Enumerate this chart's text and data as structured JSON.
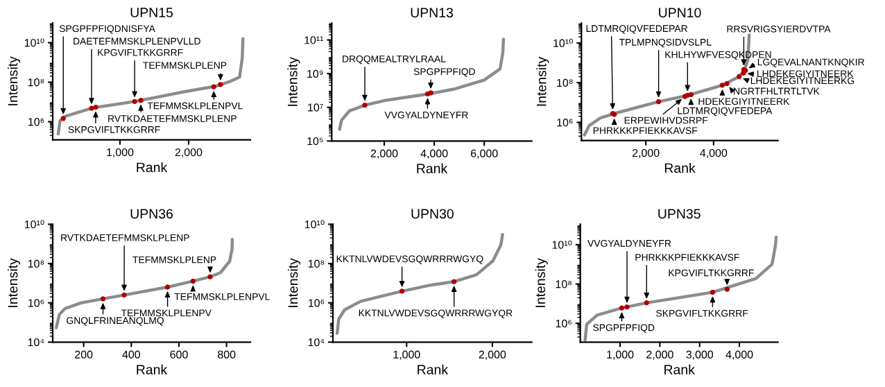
{
  "chart_data": [
    {
      "type": "scatter",
      "title": "UPN15",
      "xlabel": "Rank",
      "ylabel": "Intensity",
      "log": "y",
      "xlim": [
        20,
        2900
      ],
      "ylim": [
        120000.0,
        100000000000.0
      ],
      "xticks": [
        {
          "value": 1000,
          "label": "1,000"
        },
        {
          "value": 2000,
          "label": "2,000"
        }
      ],
      "yticks": [
        {
          "value": 1000000.0,
          "label": "10⁶"
        },
        {
          "value": 100000000.0,
          "label": "10⁸"
        },
        {
          "value": 10000000000.0,
          "label": "10¹⁰"
        }
      ],
      "series": [
        {
          "type": "line",
          "color": "#8c8c8c",
          "x": [
            100,
            127,
            204,
            602,
            1214,
            1300,
            1940,
            2400,
            2608,
            2742,
            2782,
            2792
          ],
          "values": [
            240000.0,
            1100000.0,
            1900000.0,
            5000000.0,
            10500000.0,
            12000000.0,
            33000000.0,
            63000000.0,
            110000000.0,
            180000000.0,
            1700000000.0,
            16000000000.0
          ]
        },
        {
          "marker": "circle",
          "color": "#b00000",
          "x": [
            174,
            586,
            646,
            1214,
            1304,
            2367,
            2464
          ],
          "values": [
            1450000.0,
            4800000.0,
            5400000.0,
            10500000.0,
            12000000.0,
            58000000.0,
            76000000.0
          ]
        }
      ],
      "annotations": [
        {
          "text": "SPGPFPFIQDNISFYA",
          "x": 174,
          "y": 1450000.0
        },
        {
          "text": "DAETEFMMSKLPLENPVLLD",
          "x": 586,
          "y": 4800000.0
        },
        {
          "text": "SKPGVIFLTKKGRRF",
          "x": 646,
          "y": 5400000.0
        },
        {
          "text": "KPGVIFLTKKGRRF",
          "x": 1214,
          "y": 10500000.0
        },
        {
          "text": "RVTKDAETEFMMSKLPLENP",
          "x": 1304,
          "y": 12000000.0
        },
        {
          "text": "TEFMMSKLPLENPVL",
          "x": 2367,
          "y": 58000000.0
        },
        {
          "text": "TEFMMSKLPLENP",
          "x": 2464,
          "y": 76000000.0
        }
      ]
    },
    {
      "type": "scatter",
      "title": "UPN13",
      "xlabel": "Rank",
      "ylabel": "Intensity",
      "log": "y",
      "xlim": [
        -100,
        7900
      ],
      "ylim": [
        100000.0,
        1000000000000.0
      ],
      "xticks": [
        {
          "value": 2000,
          "label": "2,000"
        },
        {
          "value": 4000,
          "label": "4,000"
        },
        {
          "value": 6000,
          "label": "6,000"
        }
      ],
      "yticks": [
        {
          "value": 100000.0,
          "label": "10⁵"
        },
        {
          "value": 10000000.0,
          "label": "10⁷"
        },
        {
          "value": 1000000000.0,
          "label": "10⁹"
        },
        {
          "value": 100000000000.0,
          "label": "10¹¹"
        }
      ],
      "series": [
        {
          "type": "line",
          "color": "#8c8c8c",
          "x": [
            214,
            289,
            611,
            1222,
            2000,
            3760,
            4778,
            6000,
            6630,
            6742,
            6769
          ],
          "values": [
            490000.0,
            1700000.0,
            6200000.0,
            13500000.0,
            25000000.0,
            62000000.0,
            120000000.0,
            420000000.0,
            1900000000.0,
            17000000000.0,
            110000000000.0
          ]
        },
        {
          "marker": "circle",
          "color": "#b00000",
          "x": [
            1222,
            3733,
            3861
          ],
          "values": [
            13500000.0,
            62000000.0,
            72000000.0
          ]
        }
      ],
      "annotations": [
        {
          "text": "DRQQMEALTRYLRAAL",
          "x": 1222,
          "y": 13500000.0
        },
        {
          "text": "SPGPFPFIQD",
          "x": 3861,
          "y": 72000000.0
        },
        {
          "text": "VVGYALDYNEYFR",
          "x": 3733,
          "y": 62000000.0
        }
      ]
    },
    {
      "type": "scatter",
      "title": "UPN10",
      "xlabel": "Rank",
      "ylabel": "Intensity",
      "log": "y",
      "xlim": [
        100,
        5900
      ],
      "ylim": [
        120000.0,
        100000000000.0
      ],
      "xticks": [
        {
          "value": 2000,
          "label": "2,000"
        },
        {
          "value": 4000,
          "label": "4,000"
        }
      ],
      "yticks": [
        {
          "value": 1000000.0,
          "label": "10⁶"
        },
        {
          "value": 100000000.0,
          "label": "10⁸"
        },
        {
          "value": 10000000000.0,
          "label": "10¹⁰"
        }
      ],
      "series": [
        {
          "type": "line",
          "color": "#8c8c8c",
          "x": [
            191,
            328,
            670,
            1045,
            2377,
            3250,
            4256,
            4754,
            4904,
            5006,
            5041,
            5050
          ],
          "values": [
            230000.0,
            680000.0,
            1700000.0,
            2700000.0,
            11000000.0,
            23000000.0,
            74000000.0,
            200000000.0,
            410000000.0,
            1300000000.0,
            11000000000.0,
            25000000000.0
          ]
        },
        {
          "marker": "circle",
          "color": "#b00000",
          "x": [
            1025,
            1070,
            2377,
            3156,
            3231,
            3334,
            4256,
            4393,
            4754,
            4880,
            4891,
            4939
          ],
          "values": [
            2750000.0,
            2500000.0,
            11000000.0,
            20000000.0,
            23000000.0,
            25000000.0,
            74000000.0,
            89000000.0,
            200000000.0,
            300000000.0,
            450000000.0,
            410000000.0
          ]
        }
      ],
      "annotations": [
        {
          "text": "LDTMRQIQVFEDEPAR",
          "x": 1025,
          "y": 2750000.0
        },
        {
          "text": "PHRKKKPFIEKKKAVSF",
          "x": 1070,
          "y": 2500000.0
        },
        {
          "text": "TPLMPNQSIDVSLPL",
          "x": 2377,
          "y": 11000000.0
        },
        {
          "text": "ERPEWIHVDSRPF",
          "x": 3156,
          "y": 20000000.0
        },
        {
          "text": "KHLHYWFVESQKDPEN",
          "x": 3231,
          "y": 23000000.0
        },
        {
          "text": "LDTMRQIQVFEDEPA",
          "x": 3334,
          "y": 25000000.0
        },
        {
          "text": "HDEKEGIYITNEERK",
          "x": 4256,
          "y": 74000000.0
        },
        {
          "text": "NGRTFHLTRTLTVK",
          "x": 4393,
          "y": 89000000.0
        },
        {
          "text": "LHDEKEGIYITNEERKG",
          "x": 4754,
          "y": 200000000.0
        },
        {
          "text": "LHDEKEGIYITNEERK",
          "x": 4880,
          "y": 300000000.0
        },
        {
          "text": "RRSVRIGSYIERDVTPA",
          "x": 4891,
          "y": 450000000.0
        },
        {
          "text": "LGQEVALNANTKNQKIR",
          "x": 4939,
          "y": 410000000.0
        }
      ]
    },
    {
      "type": "scatter",
      "title": "UPN36",
      "xlabel": "Rank",
      "ylabel": "Intensity",
      "log": "y",
      "xlim": [
        70,
        900
      ],
      "ylim": [
        10000.0,
        10000000000.0
      ],
      "xticks": [
        200,
        400,
        600,
        800
      ],
      "yticks": [
        {
          "value": 10000.0,
          "label": "10⁴"
        },
        {
          "value": 1000000.0,
          "label": "10⁶"
        },
        {
          "value": 100000000.0,
          "label": "10⁸"
        },
        {
          "value": 10000000000.0,
          "label": "10¹⁰"
        }
      ],
      "series": [
        {
          "type": "line",
          "color": "#8c8c8c",
          "x": [
            85,
            98,
            122,
            190,
            281,
            370,
            552,
            659,
            731,
            774,
            813,
            823,
            824
          ],
          "values": [
            54000.0,
            260000.0,
            510000.0,
            1000000.0,
            1600000.0,
            2500000.0,
            6300000.0,
            12600000.0,
            21000000.0,
            34000000.0,
            130000000.0,
            540000000.0,
            1700000000.0
          ]
        },
        {
          "marker": "circle",
          "color": "#b00000",
          "x": [
            281,
            370,
            552,
            659,
            731
          ],
          "values": [
            1600000.0,
            2500000.0,
            6300000.0,
            12600000.0,
            21000000.0
          ]
        }
      ],
      "annotations": [
        {
          "text": "GNQLFRINEANQLMQ",
          "x": 281,
          "y": 1600000.0
        },
        {
          "text": "RVTKDAETEFMMSKLPLENP",
          "x": 370,
          "y": 2500000.0
        },
        {
          "text": "TEFMMSKLPLENPV",
          "x": 552,
          "y": 6300000.0
        },
        {
          "text": "TEFMMSKLPLENPVL",
          "x": 659,
          "y": 12600000.0
        },
        {
          "text": "TEFMMSKLPLENP",
          "x": 731,
          "y": 21000000.0
        }
      ]
    },
    {
      "type": "scatter",
      "title": "UPN30",
      "xlabel": "Rank",
      "ylabel": "Intensity",
      "log": "y",
      "xlim": [
        140,
        2460
      ],
      "ylim": [
        10000.0,
        10000000000.0
      ],
      "xticks": [
        {
          "value": 1000,
          "label": "1,000"
        },
        {
          "value": 2000,
          "label": "2,000"
        }
      ],
      "yticks": [
        {
          "value": 10000.0,
          "label": "10⁴"
        },
        {
          "value": 1000000.0,
          "label": "10⁶"
        },
        {
          "value": 100000000.0,
          "label": "10⁸"
        },
        {
          "value": 10000000000.0,
          "label": "10¹⁰"
        }
      ],
      "series": [
        {
          "type": "line",
          "color": "#8c8c8c",
          "x": [
            189,
            208,
            276,
            465,
            946,
            1276,
            1553,
            1815,
            2006,
            2100,
            2119
          ],
          "values": [
            28000.0,
            150000.0,
            440000.0,
            1200000.0,
            3900000.0,
            7900000.0,
            12000000.0,
            27000000.0,
            135000000.0,
            890000000.0,
            3000000000.0
          ]
        },
        {
          "marker": "circle",
          "color": "#b00000",
          "x": [
            946,
            1553
          ],
          "values": [
            3900000.0,
            12000000.0
          ]
        }
      ],
      "annotations": [
        {
          "text": "KKTNLVWDEVSGQWRRRWGYQ",
          "x": 946,
          "y": 3900000.0
        },
        {
          "text": "KKTNLVWDEVSGQWRRRWGYQR",
          "x": 1553,
          "y": 12000000.0
        }
      ]
    },
    {
      "type": "scatter",
      "title": "UPN35",
      "xlabel": "Rank",
      "ylabel": "Intensity",
      "log": "y",
      "xlim": [
        0,
        4970
      ],
      "ylim": [
        110000.0,
        110000000000.0
      ],
      "xticks": [
        {
          "value": 1000,
          "label": "1,000"
        },
        {
          "value": 2000,
          "label": "2,000"
        },
        {
          "value": 3000,
          "label": "3,000"
        },
        {
          "value": 4000,
          "label": "4,000"
        }
      ],
      "yticks": [
        {
          "value": 1000000.0,
          "label": "10⁶"
        },
        {
          "value": 100000000.0,
          "label": "10⁸"
        },
        {
          "value": 10000000000.0,
          "label": "10¹⁰"
        }
      ],
      "series": [
        {
          "type": "line",
          "color": "#8c8c8c",
          "x": [
            121,
            161,
            422,
            1042,
            1667,
            3327,
            4415,
            4820,
            4906,
            4924
          ],
          "values": [
            140000.0,
            890000.0,
            2600000.0,
            6000000.0,
            11000000.0,
            38000000.0,
            190000000.0,
            1000000000.0,
            8900000000.0,
            24000000000.0
          ]
        },
        {
          "marker": "circle",
          "color": "#b00000",
          "x": [
            1042,
            1174,
            1667,
            3327,
            3691
          ],
          "values": [
            6000000.0,
            6800000.0,
            11000000.0,
            38000000.0,
            54000000.0
          ]
        }
      ],
      "annotations": [
        {
          "text": "SPGPFPFIQD",
          "x": 1042,
          "y": 6000000.0
        },
        {
          "text": "VVGYALDYNEYFR",
          "x": 1174,
          "y": 6800000.0
        },
        {
          "text": "PHRKKKPFIEKKKAVSF",
          "x": 1667,
          "y": 11000000.0
        },
        {
          "text": "SKPGVIFLTKKGRRF",
          "x": 3327,
          "y": 38000000.0
        },
        {
          "text": "KPGVIFLTKKGRRF",
          "x": 3691,
          "y": 54000000.0
        }
      ]
    }
  ]
}
